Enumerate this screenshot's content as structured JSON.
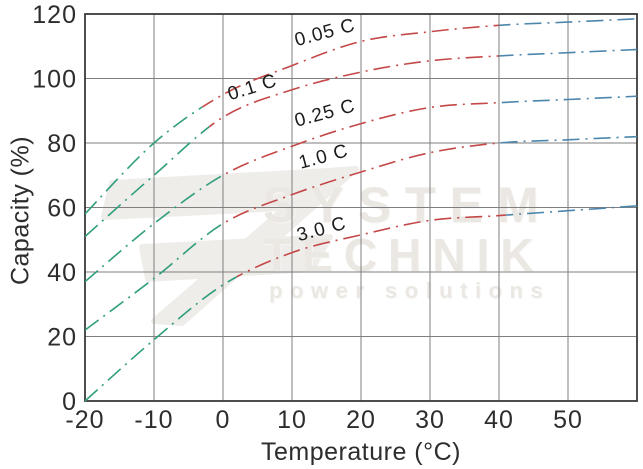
{
  "chart_data": {
    "type": "line",
    "title": "",
    "xlabel": "Temperature (°C)",
    "ylabel": "Capacity (%)",
    "xlim": [
      -20,
      60
    ],
    "ylim": [
      0,
      120
    ],
    "xticks": [
      -20,
      -10,
      0,
      10,
      20,
      30,
      40,
      50
    ],
    "yticks": [
      0,
      20,
      40,
      60,
      80,
      100,
      120
    ],
    "grid": true,
    "line_style": "dash-dot",
    "x": [
      -20,
      -10,
      0,
      10,
      20,
      30,
      40,
      50,
      60
    ],
    "series": [
      {
        "name": "0.05 C",
        "values": [
          58,
          80,
          95,
          104,
          111.5,
          114.5,
          116.5,
          117.5,
          118.5
        ],
        "label_at": {
          "t": 15,
          "cap": 112.5,
          "angle": -15
        },
        "segments": {
          "cold_until": -3,
          "hot_from": 40
        }
      },
      {
        "name": "0.1 C",
        "values": [
          51,
          70,
          88,
          96.5,
          102,
          105.5,
          107,
          108,
          109
        ],
        "label_at": {
          "t": 4.5,
          "cap": 95.5,
          "angle": -17
        },
        "segments": {
          "cold_until": -2,
          "hot_from": 40
        }
      },
      {
        "name": "0.25 C",
        "values": [
          37,
          55,
          70,
          79,
          86,
          91,
          92.5,
          93.5,
          94.5
        ],
        "label_at": {
          "t": 15,
          "cap": 87.5,
          "angle": -15
        },
        "segments": {
          "cold_until": 0,
          "hot_from": 40
        }
      },
      {
        "name": "1.0 C",
        "values": [
          22,
          38,
          55,
          64,
          71,
          77,
          80,
          81,
          82
        ],
        "label_at": {
          "t": 14.8,
          "cap": 74,
          "angle": -15
        },
        "segments": {
          "cold_until": 0,
          "hot_from": 40
        }
      },
      {
        "name": "3.0 C",
        "values": [
          0,
          19,
          36,
          46,
          51.5,
          56,
          57.5,
          59,
          60.5
        ],
        "label_at": {
          "t": 14.5,
          "cap": 51.5,
          "angle": -15
        },
        "segments": {
          "cold_until": 2,
          "hot_from": 41
        }
      }
    ],
    "colors": {
      "cold": "#2f9e7c",
      "mid": "#c54848",
      "hot": "#4c86ad",
      "grid": "#7f7f7f",
      "border": "#3a3a3a",
      "text": "#2d2d2d",
      "curve_label": "#1c1c1c"
    }
  },
  "watermark": {
    "line1": "SYSTEM",
    "line2": "TECHNIK",
    "line3": "power solutions",
    "color": "#ebe8e4"
  }
}
